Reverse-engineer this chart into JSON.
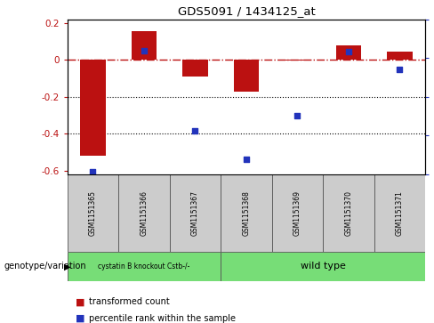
{
  "title": "GDS5091 / 1434125_at",
  "samples": [
    "GSM1151365",
    "GSM1151366",
    "GSM1151367",
    "GSM1151368",
    "GSM1151369",
    "GSM1151370",
    "GSM1151371"
  ],
  "red_values": [
    -0.52,
    0.155,
    -0.09,
    -0.17,
    -0.005,
    0.08,
    0.045
  ],
  "blue_values_pct": [
    2,
    80,
    28,
    10,
    38,
    79,
    68
  ],
  "red_color": "#bb1111",
  "blue_color": "#2233bb",
  "ylim_left": [
    -0.62,
    0.22
  ],
  "ylim_right": [
    0,
    100
  ],
  "dotted_lines": [
    -0.2,
    -0.4
  ],
  "group1_label": "cystatin B knockout Cstb-/-",
  "group2_label": "wild type",
  "group1_count": 3,
  "genotype_label": "genotype/variation",
  "legend1": "transformed count",
  "legend2": "percentile rank within the sample",
  "group_color": "#77dd77",
  "sample_box_color": "#cccccc",
  "bar_width": 0.5
}
